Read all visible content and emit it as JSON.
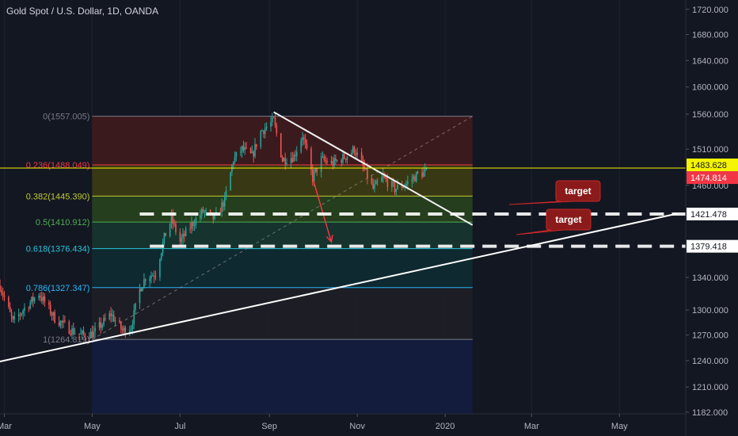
{
  "title": "Gold Spot / U.S. Dollar, 1D, OANDA",
  "colors": {
    "background": "#131722",
    "bull": "#26a69a",
    "bear": "#ef5350",
    "axis_text": "#b2b5be",
    "trendline": "#ffffff",
    "target_line": "#ffffff",
    "callout_fill": "#8b1a1a",
    "callout_stroke": "#c62828",
    "price_yellow": "#f5f500",
    "price_red": "#f23645"
  },
  "chart_data": {
    "type": "candlestick",
    "y_scale": "log",
    "ylim": [
      1156,
      1735
    ],
    "y_ticks": [
      "1720.000",
      "1680.000",
      "1640.000",
      "1600.000",
      "1560.000",
      "1510.000",
      "1460.000",
      "1340.000",
      "1300.000",
      "1270.000",
      "1240.000",
      "1210.000",
      "1182.000"
    ],
    "x_ticks": [
      "Mar",
      "May",
      "Jul",
      "Sep",
      "Nov",
      "2020",
      "Mar",
      "May"
    ],
    "x_tick_dates": [
      "2019-03-01",
      "2019-05-01",
      "2019-07-01",
      "2019-09-01",
      "2019-11-01",
      "2020-01-01",
      "2020-03-01",
      "2020-05-01"
    ],
    "x_range": [
      "2019-02-26",
      "2020-06-16"
    ],
    "price_path": [
      [
        "2019-02-26",
        1330
      ],
      [
        "2019-03-07",
        1285
      ],
      [
        "2019-03-14",
        1300
      ],
      [
        "2019-03-25",
        1320
      ],
      [
        "2019-04-05",
        1290
      ],
      [
        "2019-04-17",
        1275
      ],
      [
        "2019-04-23",
        1270
      ],
      [
        "2019-05-02",
        1272
      ],
      [
        "2019-05-14",
        1295
      ],
      [
        "2019-05-22",
        1275
      ],
      [
        "2019-05-28",
        1280
      ],
      [
        "2019-06-03",
        1325
      ],
      [
        "2019-06-07",
        1340
      ],
      [
        "2019-06-14",
        1345
      ],
      [
        "2019-06-20",
        1390
      ],
      [
        "2019-06-25",
        1415
      ],
      [
        "2019-07-01",
        1385
      ],
      [
        "2019-07-10",
        1410
      ],
      [
        "2019-07-17",
        1425
      ],
      [
        "2019-07-25",
        1415
      ],
      [
        "2019-08-01",
        1440
      ],
      [
        "2019-08-07",
        1495
      ],
      [
        "2019-08-13",
        1510
      ],
      [
        "2019-08-20",
        1500
      ],
      [
        "2019-08-26",
        1535
      ],
      [
        "2019-09-04",
        1550
      ],
      [
        "2019-09-10",
        1495
      ],
      [
        "2019-09-18",
        1500
      ],
      [
        "2019-09-24",
        1530
      ],
      [
        "2019-10-01",
        1470
      ],
      [
        "2019-10-07",
        1495
      ],
      [
        "2019-10-15",
        1490
      ],
      [
        "2019-10-24",
        1500
      ],
      [
        "2019-10-30",
        1510
      ],
      [
        "2019-11-05",
        1485
      ],
      [
        "2019-11-12",
        1455
      ],
      [
        "2019-11-19",
        1470
      ],
      [
        "2019-11-27",
        1455
      ],
      [
        "2019-12-05",
        1462
      ],
      [
        "2019-12-13",
        1475
      ],
      [
        "2019-12-19",
        1478
      ]
    ],
    "candle_range": [
      "2019-02-26",
      "2019-12-19"
    ],
    "fibonacci": {
      "date_range": [
        "2019-05-01",
        "2020-01-20"
      ],
      "levels": [
        {
          "ratio": 0,
          "label": "0(1557.005)",
          "price": 1557.005,
          "color": "#787b86",
          "fill": "#3d1a1e"
        },
        {
          "ratio": 0.236,
          "label": "0.236(1488.049)",
          "price": 1488.049,
          "color": "#f23645",
          "fill": "#3b3a14"
        },
        {
          "ratio": 0.382,
          "label": "0.382(1445.390)",
          "price": 1445.39,
          "color": "#c0ca33",
          "fill": "#26401e"
        },
        {
          "ratio": 0.5,
          "label": "0.5(1410.912)",
          "price": 1410.912,
          "color": "#4caf50",
          "fill": "#16352e"
        },
        {
          "ratio": 0.618,
          "label": "0.618(1376.434)",
          "price": 1376.434,
          "color": "#26c6da",
          "fill": "#0f2a33"
        },
        {
          "ratio": 0.786,
          "label": "0.786(1327.347)",
          "price": 1327.347,
          "color": "#29b6f6",
          "fill": "#1d1f26"
        },
        {
          "ratio": 1,
          "label": "1(1264.819)",
          "price": 1264.819,
          "color": "#787b86",
          "fill": "#141c3f"
        }
      ]
    },
    "current_price": {
      "value": "1483.628",
      "secondary": "1474.814"
    },
    "targets": [
      {
        "label": "target",
        "price": "1421.478",
        "value": 1421.478,
        "line_from": "2019-06-03"
      },
      {
        "label": "target",
        "price": "1379.418",
        "value": 1379.418,
        "line_from": "2019-06-10"
      }
    ],
    "annotations": {
      "uptrend_line": [
        [
          "2019-02-26",
          1239
        ],
        [
          "2020-06-10",
          1422
        ]
      ],
      "downtrend_line": [
        [
          "2019-09-04",
          1563
        ],
        [
          "2020-01-20",
          1407
        ]
      ],
      "diagonal_fib": [
        [
          "2019-05-01",
          1264.819
        ],
        [
          "2020-01-20",
          1557.005
        ]
      ],
      "down_arrow": [
        [
          "2019-10-01",
          1470
        ],
        [
          "2019-10-14",
          1385
        ]
      ]
    }
  }
}
